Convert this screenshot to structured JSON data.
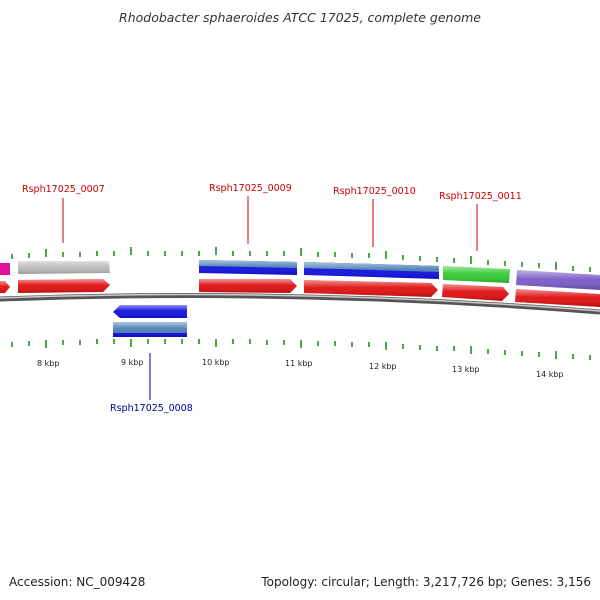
{
  "title": "Rhodobacter sphaeroides ATCC 17025, complete genome",
  "footer": {
    "accession": "Accession: NC_009428",
    "summary": "Topology: circular; Length: 3,217,726 bp; Genes: 3,156"
  },
  "colors": {
    "cds_red": "#e01010",
    "gene_blue": "#1010e0",
    "gene_steel": "#4a7fb4",
    "gene_gray": "#bbbbbb",
    "gene_green": "#33cc33",
    "gene_purple": "#7a5cc8",
    "gene_magenta": "#e0109c",
    "tick_green": "#118811",
    "label_red": "#cc0000",
    "label_blue": "#000099"
  },
  "kbp_labels": [
    "8 kbp",
    "9 kbp",
    "10 kbp",
    "11 kbp",
    "12 kbp",
    "13 kbp",
    "14 kbp"
  ],
  "gene_labels": [
    {
      "name": "Rsph17025_0007",
      "strand": "plus"
    },
    {
      "name": "Rsph17025_0008",
      "strand": "minus"
    },
    {
      "name": "Rsph17025_0009",
      "strand": "plus"
    },
    {
      "name": "Rsph17025_0010",
      "strand": "plus"
    },
    {
      "name": "Rsph17025_0011",
      "strand": "plus"
    }
  ]
}
